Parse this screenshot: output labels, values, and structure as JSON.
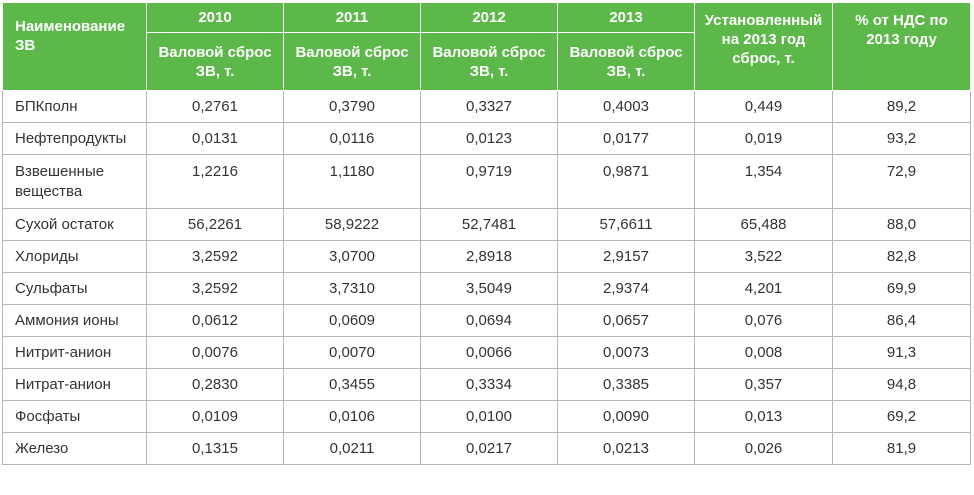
{
  "table": {
    "header": {
      "name": "Наименование ЗВ",
      "years": [
        "2010",
        "2011",
        "2012",
        "2013"
      ],
      "gross_label": "Валовой сброс ЗВ, т.",
      "established": "Установленный на 2013 год сброс, т.",
      "percent": "% от НДС по 2013 году"
    },
    "rows": [
      {
        "name": "БПКполн",
        "v2010": "0,2761",
        "v2011": "0,3790",
        "v2012": "0,3327",
        "v2013": "0,4003",
        "limit": "0,449",
        "pct": "89,2"
      },
      {
        "name": "Нефтепродукты",
        "v2010": "0,0131",
        "v2011": "0,0116",
        "v2012": "0,0123",
        "v2013": "0,0177",
        "limit": "0,019",
        "pct": "93,2"
      },
      {
        "name": "Взвешенные вещества",
        "v2010": "1,2216",
        "v2011": "1,1180",
        "v2012": "0,9719",
        "v2013": "0,9871",
        "limit": "1,354",
        "pct": "72,9"
      },
      {
        "name": "Сухой остаток",
        "v2010": "56,2261",
        "v2011": "58,9222",
        "v2012": "52,7481",
        "v2013": "57,6611",
        "limit": "65,488",
        "pct": "88,0"
      },
      {
        "name": "Хлориды",
        "v2010": "3,2592",
        "v2011": "3,0700",
        "v2012": "2,8918",
        "v2013": "2,9157",
        "limit": "3,522",
        "pct": "82,8"
      },
      {
        "name": "Сульфаты",
        "v2010": "3,2592",
        "v2011": "3,7310",
        "v2012": "3,5049",
        "v2013": "2,9374",
        "limit": "4,201",
        "pct": "69,9"
      },
      {
        "name": "Аммония ионы",
        "v2010": "0,0612",
        "v2011": "0,0609",
        "v2012": "0,0694",
        "v2013": "0,0657",
        "limit": "0,076",
        "pct": "86,4"
      },
      {
        "name": "Нитрит-анион",
        "v2010": "0,0076",
        "v2011": "0,0070",
        "v2012": "0,0066",
        "v2013": "0,0073",
        "limit": "0,008",
        "pct": "91,3"
      },
      {
        "name": "Нитрат-анион",
        "v2010": "0,2830",
        "v2011": "0,3455",
        "v2012": "0,3334",
        "v2013": "0,3385",
        "limit": "0,357",
        "pct": "94,8"
      },
      {
        "name": "Фосфаты",
        "v2010": "0,0109",
        "v2011": "0,0106",
        "v2012": "0,0100",
        "v2013": "0,0090",
        "limit": "0,013",
        "pct": "69,2"
      },
      {
        "name": "Железо",
        "v2010": "0,1315",
        "v2011": "0,0211",
        "v2012": "0,0217",
        "v2013": "0,0213",
        "limit": "0,026",
        "pct": "81,9"
      }
    ]
  }
}
